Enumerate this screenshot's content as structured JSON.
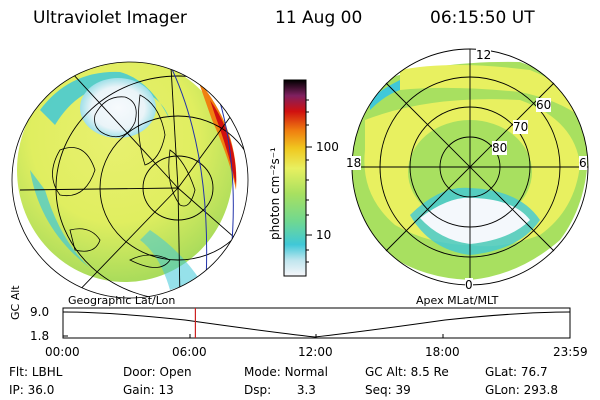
{
  "header": {
    "instrument": "Ultraviolet Imager",
    "date": "11 Aug 00",
    "time": "06:15:50 UT"
  },
  "left_panel": {
    "caption": "Geographic Lat/Lon"
  },
  "right_panel": {
    "caption": "Apex MLat/MLT",
    "mlt_labels": {
      "top": "12",
      "left": "18",
      "right": "6",
      "bottom": "0"
    },
    "mlat_labels": [
      "60",
      "70",
      "80"
    ]
  },
  "colorbar": {
    "unit_label": "photon cm⁻²s⁻¹",
    "ticks": [
      "100",
      "10"
    ]
  },
  "altitude_plot": {
    "ylabel": "GC Alt",
    "ymax": "9.0",
    "ymin": "1.8",
    "xticks": [
      "00:00",
      "06:00",
      "12:00",
      "18:00",
      "23:59"
    ],
    "marker_time": "06:15:50"
  },
  "info": {
    "flt_label": "Flt:",
    "flt_value": "LBHL",
    "door_label": "Door:",
    "door_value": "Open",
    "mode_label": "Mode:",
    "mode_value": "Normal",
    "gcalt_label": "GC Alt:",
    "gcalt_value": "8.5 Re",
    "glat_label": "GLat:",
    "glat_value": "76.7",
    "ip_label": "IP:",
    "ip_value": "36.0",
    "gain_label": "Gain:",
    "gain_value": "13",
    "dsp_label": "Dsp:",
    "dsp_value": "3.3",
    "seq_label": "Seq:",
    "seq_value": "39",
    "glon_label": "GLon:",
    "glon_value": "293.8"
  },
  "colors": {
    "background_green": "#a8e060",
    "yellow": "#e8f060",
    "cyan": "#40c8d8",
    "white_core": "#f4f8fc",
    "red": "#d01010",
    "marker": "#cc2222"
  }
}
